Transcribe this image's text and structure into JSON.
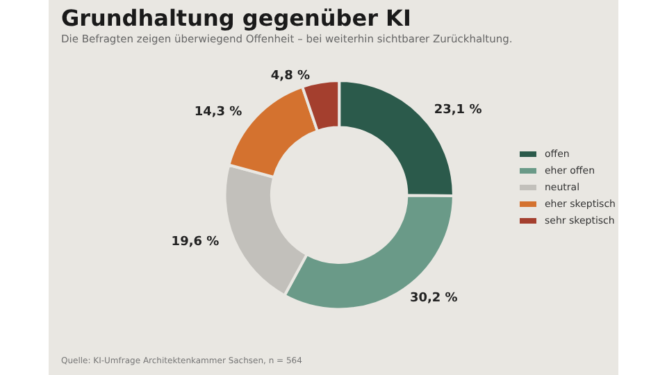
{
  "chart_data": {
    "type": "donut",
    "title": "Grundhaltung gegenüber KI",
    "subtitle": "Die Befragten zeigen überwiegend Offenheit – bei weiterhin sichtbarer Zurückhaltung.",
    "categories": [
      "offen",
      "eher offen",
      "neutral",
      "eher skeptisch",
      "sehr skeptisch"
    ],
    "values": [
      23.1,
      30.2,
      19.6,
      14.3,
      4.8
    ],
    "value_labels": [
      "23,1 %",
      "30,2 %",
      "19,6 %",
      "14,3 %",
      "4,8 %"
    ],
    "colors": [
      "#2b5a4b",
      "#6a9a88",
      "#c2c0bb",
      "#d4722f",
      "#a43f2e"
    ],
    "legend": "right",
    "annotations": [
      "Quelle: KI-Umfrage Architektenkammer Sachsen, n = 564"
    ]
  }
}
